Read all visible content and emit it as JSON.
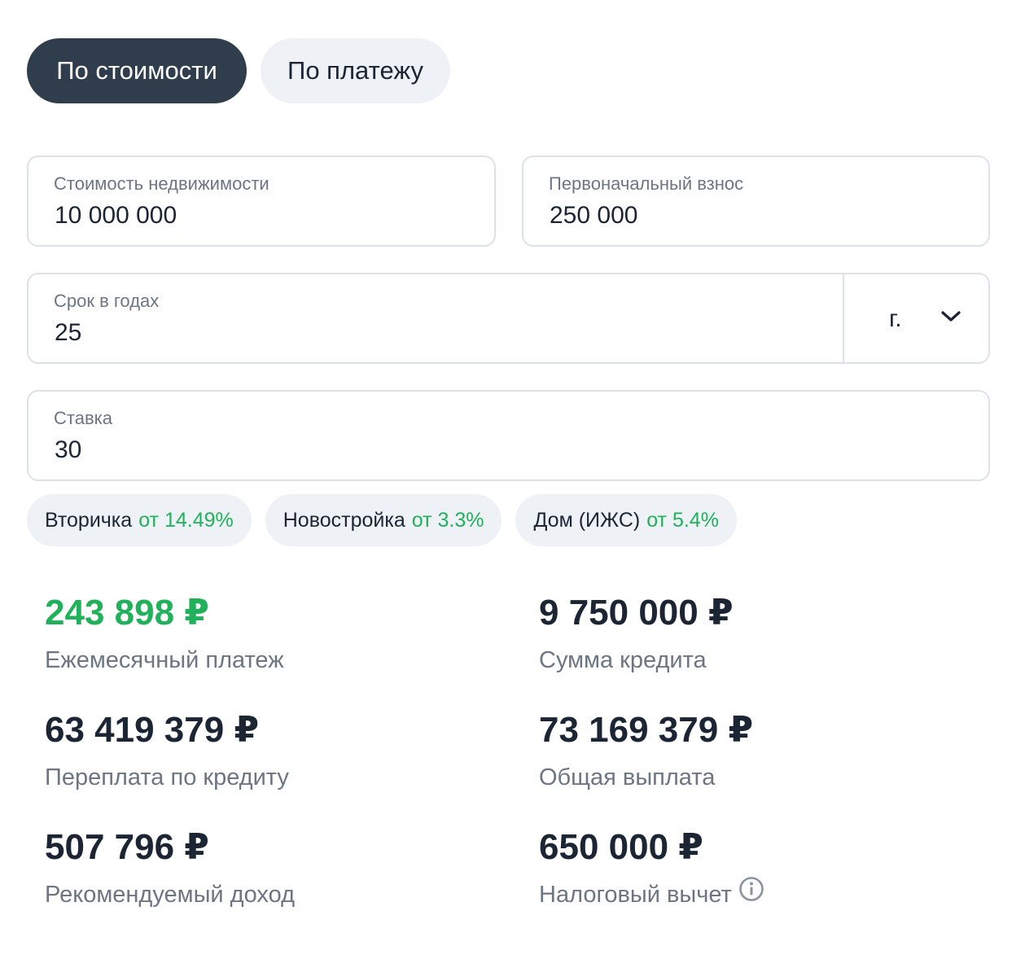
{
  "tabs": [
    {
      "label": "По стоимости",
      "active": true
    },
    {
      "label": "По платежу",
      "active": false
    }
  ],
  "fields": {
    "price": {
      "label": "Стоимость недвижимости",
      "value": "10 000 000"
    },
    "down_payment": {
      "label": "Первоначальный взнос",
      "value": "250 000"
    },
    "term": {
      "label": "Срок в годах",
      "value": "25",
      "unit": "г."
    },
    "rate": {
      "label": "Ставка",
      "value": "30"
    }
  },
  "chips": [
    {
      "name": "Вторичка",
      "rate": "от 14.49%"
    },
    {
      "name": "Новостройка",
      "rate": "от 3.3%"
    },
    {
      "name": "Дом (ИЖС)",
      "rate": "от 5.4%"
    }
  ],
  "results": {
    "monthly_payment": {
      "value": "243 898 ₽",
      "label": "Ежемесячный платеж"
    },
    "loan_amount": {
      "value": "9 750 000 ₽",
      "label": "Сумма кредита"
    },
    "overpayment": {
      "value": "63 419 379 ₽",
      "label": "Переплата по кредиту"
    },
    "total_payment": {
      "value": "73 169 379 ₽",
      "label": "Общая выплата"
    },
    "recommended_income": {
      "value": "507 796 ₽",
      "label": "Рекомендуемый доход"
    },
    "tax_deduction": {
      "value": "650 000 ₽",
      "label": "Налоговый вычет"
    }
  },
  "colors": {
    "accent_green": "#20b15a",
    "active_tab": "#2f3d4c",
    "chip_bg": "#eef2f7"
  },
  "icons": {
    "term_unit_dropdown": "chevron-down-icon",
    "tax_deduction_info": "info-icon"
  }
}
